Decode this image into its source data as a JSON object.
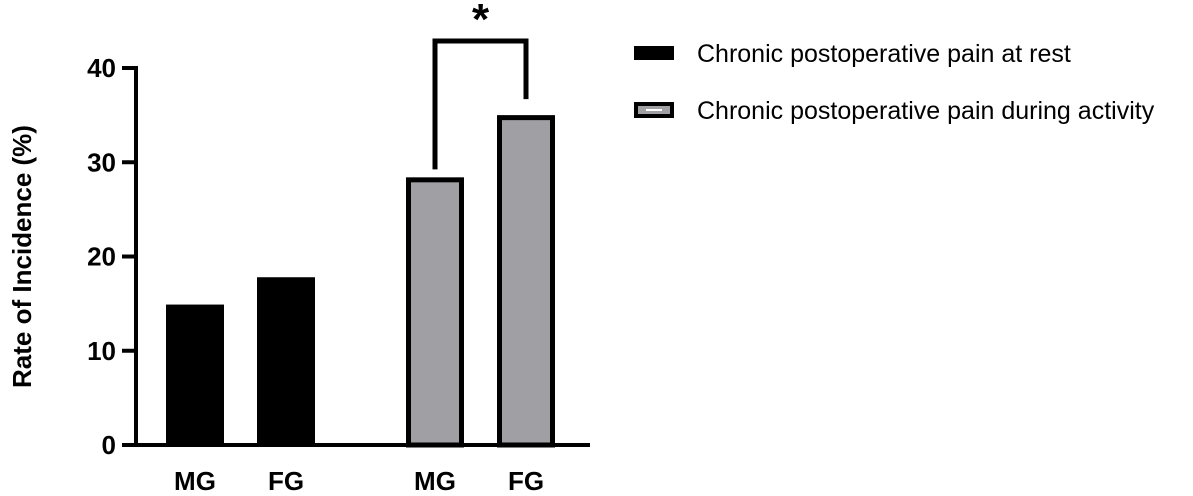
{
  "chart_data": {
    "type": "bar",
    "title": "",
    "xlabel": "",
    "ylabel": "Rate of Incidence (%)",
    "ylim": [
      0,
      40
    ],
    "yticks": [
      0,
      10,
      20,
      30,
      40
    ],
    "grid": false,
    "legend_position": "top-right",
    "groups": [
      {
        "series": "Chronic postoperative pain at rest",
        "categories": [
          "MG",
          "FG"
        ],
        "values": [
          14.9,
          17.8
        ]
      },
      {
        "series": "Chronic postoperative pain during activity",
        "categories": [
          "MG",
          "FG"
        ],
        "values": [
          28.4,
          35.0
        ]
      }
    ],
    "series": [
      {
        "name": "Chronic postoperative pain at rest",
        "color": "#000000",
        "edge": "#000000"
      },
      {
        "name": "Chronic postoperative pain during activity",
        "color": "#a0a0a4",
        "edge": "#000000"
      }
    ],
    "annotations": [
      {
        "text": "*",
        "between": [
          "MG",
          "FG"
        ],
        "group": 1
      }
    ]
  }
}
